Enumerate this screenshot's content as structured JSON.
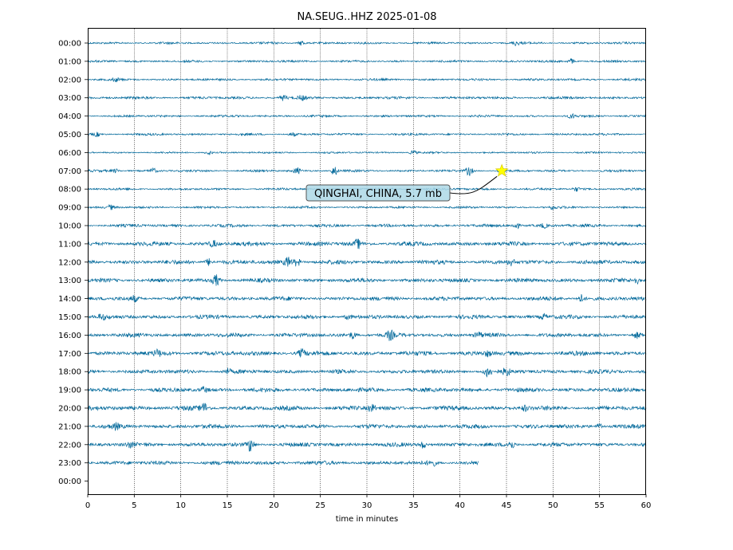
{
  "chart_data": {
    "type": "line",
    "title": "NA.SEUG..HHZ 2025-01-08",
    "xlabel": "time in minutes",
    "ylabel": "",
    "xlim": [
      0,
      60
    ],
    "x_ticks": [
      0,
      5,
      10,
      15,
      20,
      25,
      30,
      35,
      40,
      45,
      50,
      55,
      60
    ],
    "y_tick_labels": [
      "00:00",
      "01:00",
      "02:00",
      "03:00",
      "04:00",
      "05:00",
      "06:00",
      "07:00",
      "08:00",
      "09:00",
      "10:00",
      "11:00",
      "12:00",
      "13:00",
      "14:00",
      "15:00",
      "16:00",
      "17:00",
      "18:00",
      "19:00",
      "20:00",
      "21:00",
      "22:00",
      "23:00",
      "00:00"
    ],
    "grid": "vertical dotted",
    "trace_color": "#00689a",
    "traces": [
      {
        "hour": "00:00",
        "end_minute": 60,
        "noise": 0.22,
        "bursts": [
          [
            23,
            0.6
          ],
          [
            46,
            0.5
          ]
        ]
      },
      {
        "hour": "01:00",
        "end_minute": 60,
        "noise": 0.22,
        "bursts": [
          [
            52,
            0.6
          ]
        ]
      },
      {
        "hour": "02:00",
        "end_minute": 60,
        "noise": 0.22,
        "bursts": [
          [
            3,
            0.4
          ]
        ]
      },
      {
        "hour": "03:00",
        "end_minute": 60,
        "noise": 0.26,
        "bursts": [
          [
            21,
            0.6
          ],
          [
            23,
            0.5
          ]
        ]
      },
      {
        "hour": "04:00",
        "end_minute": 60,
        "noise": 0.22,
        "bursts": [
          [
            52,
            0.5
          ]
        ]
      },
      {
        "hour": "05:00",
        "end_minute": 60,
        "noise": 0.22,
        "bursts": [
          [
            1,
            0.4
          ],
          [
            22,
            0.4
          ]
        ]
      },
      {
        "hour": "06:00",
        "end_minute": 60,
        "noise": 0.18,
        "bursts": [
          [
            13,
            0.5
          ],
          [
            35,
            0.5
          ]
        ]
      },
      {
        "hour": "07:00",
        "end_minute": 60,
        "noise": 0.22,
        "bursts": [
          [
            3,
            0.4
          ],
          [
            7,
            0.6
          ],
          [
            22.5,
            0.7
          ],
          [
            26.5,
            1.1
          ],
          [
            41,
            1.1
          ],
          [
            44.5,
            0.6
          ]
        ]
      },
      {
        "hour": "08:00",
        "end_minute": 60,
        "noise": 0.22,
        "bursts": [
          [
            52.5,
            0.5
          ]
        ]
      },
      {
        "hour": "09:00",
        "end_minute": 60,
        "noise": 0.22,
        "bursts": [
          [
            2.5,
            0.5
          ],
          [
            50,
            0.4
          ]
        ]
      },
      {
        "hour": "10:00",
        "end_minute": 60,
        "noise": 0.3,
        "bursts": [
          [
            46,
            0.9
          ],
          [
            49,
            0.5
          ]
        ]
      },
      {
        "hour": "11:00",
        "end_minute": 60,
        "noise": 0.42,
        "bursts": [
          [
            13.5,
            0.7
          ],
          [
            29,
            1.0
          ]
        ]
      },
      {
        "hour": "12:00",
        "end_minute": 60,
        "noise": 0.42,
        "bursts": [
          [
            13,
            0.8
          ],
          [
            21.5,
            1.1
          ],
          [
            22.5,
            0.9
          ],
          [
            45.5,
            0.7
          ]
        ]
      },
      {
        "hour": "13:00",
        "end_minute": 60,
        "noise": 0.4,
        "bursts": [
          [
            13.8,
            1.3
          ],
          [
            59,
            0.6
          ]
        ]
      },
      {
        "hour": "14:00",
        "end_minute": 60,
        "noise": 0.4,
        "bursts": [
          [
            5,
            0.6
          ],
          [
            53,
            0.9
          ]
        ]
      },
      {
        "hour": "15:00",
        "end_minute": 60,
        "noise": 0.4,
        "bursts": [
          [
            1.5,
            0.6
          ],
          [
            28,
            0.6
          ],
          [
            49,
            0.6
          ]
        ]
      },
      {
        "hour": "16:00",
        "end_minute": 60,
        "noise": 0.4,
        "bursts": [
          [
            28.5,
            0.8
          ],
          [
            32.5,
            1.0
          ],
          [
            42,
            0.6
          ],
          [
            59,
            0.6
          ]
        ]
      },
      {
        "hour": "17:00",
        "end_minute": 60,
        "noise": 0.45,
        "bursts": [
          [
            23,
            0.9
          ],
          [
            7.5,
            0.6
          ],
          [
            43,
            0.6
          ]
        ]
      },
      {
        "hour": "18:00",
        "end_minute": 60,
        "noise": 0.4,
        "bursts": [
          [
            15,
            0.6
          ],
          [
            43,
            1.2
          ],
          [
            45,
            0.9
          ]
        ]
      },
      {
        "hour": "19:00",
        "end_minute": 60,
        "noise": 0.42,
        "bursts": [
          [
            12.5,
            0.6
          ]
        ]
      },
      {
        "hour": "20:00",
        "end_minute": 60,
        "noise": 0.45,
        "bursts": [
          [
            12.5,
            1.1
          ],
          [
            30.5,
            0.8
          ],
          [
            47,
            0.6
          ]
        ]
      },
      {
        "hour": "21:00",
        "end_minute": 60,
        "noise": 0.42,
        "bursts": [
          [
            3,
            0.6
          ],
          [
            55,
            0.6
          ]
        ]
      },
      {
        "hour": "22:00",
        "end_minute": 60,
        "noise": 0.4,
        "bursts": [
          [
            17.5,
            1.6
          ],
          [
            36,
            0.8
          ],
          [
            45.5,
            0.9
          ],
          [
            4.5,
            0.5
          ]
        ]
      },
      {
        "hour": "23:00",
        "end_minute": 42,
        "noise": 0.4,
        "bursts": [
          [
            37,
            0.8
          ]
        ]
      }
    ],
    "annotations": [
      {
        "text": "QINGHAI, CHINA, 5.7 mb",
        "minute": 44.5,
        "hour_row": 7,
        "marker": "star",
        "marker_color": "#ffff00",
        "box_color": "#add8e6"
      }
    ]
  }
}
